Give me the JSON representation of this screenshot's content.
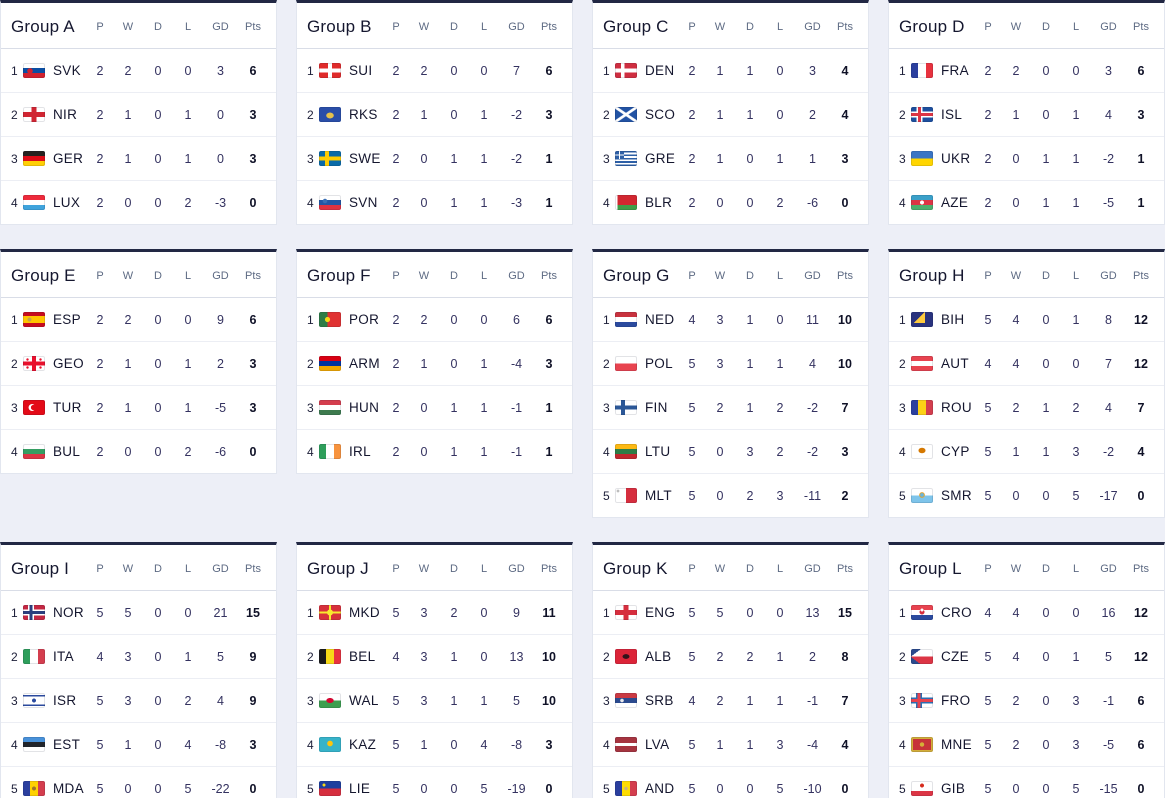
{
  "colors": {
    "page_background": "#edeff7",
    "card_background": "#ffffff",
    "card_accent_top_border": "#222844",
    "row_divider": "#eceef4",
    "column_header_text": "#5d6a83",
    "stat_text": "#343260",
    "points_text": "#0f1127"
  },
  "table_headers": {
    "p": "P",
    "w": "W",
    "d": "D",
    "l": "L",
    "gd": "GD",
    "pts": "Pts"
  },
  "groups": [
    {
      "name": "Group A",
      "rows": [
        {
          "pos": 1,
          "flag": "svk",
          "team": "SVK",
          "p": 2,
          "w": 2,
          "d": 0,
          "l": 0,
          "gd": 3,
          "pts": 6
        },
        {
          "pos": 2,
          "flag": "nir",
          "team": "NIR",
          "p": 2,
          "w": 1,
          "d": 0,
          "l": 1,
          "gd": 0,
          "pts": 3
        },
        {
          "pos": 3,
          "flag": "ger",
          "team": "GER",
          "p": 2,
          "w": 1,
          "d": 0,
          "l": 1,
          "gd": 0,
          "pts": 3
        },
        {
          "pos": 4,
          "flag": "lux",
          "team": "LUX",
          "p": 2,
          "w": 0,
          "d": 0,
          "l": 2,
          "gd": -3,
          "pts": 0
        }
      ]
    },
    {
      "name": "Group B",
      "rows": [
        {
          "pos": 1,
          "flag": "sui",
          "team": "SUI",
          "p": 2,
          "w": 2,
          "d": 0,
          "l": 0,
          "gd": 7,
          "pts": 6
        },
        {
          "pos": 2,
          "flag": "rks",
          "team": "RKS",
          "p": 2,
          "w": 1,
          "d": 0,
          "l": 1,
          "gd": -2,
          "pts": 3
        },
        {
          "pos": 3,
          "flag": "swe",
          "team": "SWE",
          "p": 2,
          "w": 0,
          "d": 1,
          "l": 1,
          "gd": -2,
          "pts": 1
        },
        {
          "pos": 4,
          "flag": "svn",
          "team": "SVN",
          "p": 2,
          "w": 0,
          "d": 1,
          "l": 1,
          "gd": -3,
          "pts": 1
        }
      ]
    },
    {
      "name": "Group C",
      "rows": [
        {
          "pos": 1,
          "flag": "den",
          "team": "DEN",
          "p": 2,
          "w": 1,
          "d": 1,
          "l": 0,
          "gd": 3,
          "pts": 4
        },
        {
          "pos": 2,
          "flag": "sco",
          "team": "SCO",
          "p": 2,
          "w": 1,
          "d": 1,
          "l": 0,
          "gd": 2,
          "pts": 4
        },
        {
          "pos": 3,
          "flag": "gre",
          "team": "GRE",
          "p": 2,
          "w": 1,
          "d": 0,
          "l": 1,
          "gd": 1,
          "pts": 3
        },
        {
          "pos": 4,
          "flag": "blr",
          "team": "BLR",
          "p": 2,
          "w": 0,
          "d": 0,
          "l": 2,
          "gd": -6,
          "pts": 0
        }
      ]
    },
    {
      "name": "Group D",
      "rows": [
        {
          "pos": 1,
          "flag": "fra",
          "team": "FRA",
          "p": 2,
          "w": 2,
          "d": 0,
          "l": 0,
          "gd": 3,
          "pts": 6
        },
        {
          "pos": 2,
          "flag": "isl",
          "team": "ISL",
          "p": 2,
          "w": 1,
          "d": 0,
          "l": 1,
          "gd": 4,
          "pts": 3
        },
        {
          "pos": 3,
          "flag": "ukr",
          "team": "UKR",
          "p": 2,
          "w": 0,
          "d": 1,
          "l": 1,
          "gd": -2,
          "pts": 1
        },
        {
          "pos": 4,
          "flag": "aze",
          "team": "AZE",
          "p": 2,
          "w": 0,
          "d": 1,
          "l": 1,
          "gd": -5,
          "pts": 1
        }
      ]
    },
    {
      "name": "Group E",
      "rows": [
        {
          "pos": 1,
          "flag": "esp",
          "team": "ESP",
          "p": 2,
          "w": 2,
          "d": 0,
          "l": 0,
          "gd": 9,
          "pts": 6
        },
        {
          "pos": 2,
          "flag": "geo",
          "team": "GEO",
          "p": 2,
          "w": 1,
          "d": 0,
          "l": 1,
          "gd": 2,
          "pts": 3
        },
        {
          "pos": 3,
          "flag": "tur",
          "team": "TUR",
          "p": 2,
          "w": 1,
          "d": 0,
          "l": 1,
          "gd": -5,
          "pts": 3
        },
        {
          "pos": 4,
          "flag": "bul",
          "team": "BUL",
          "p": 2,
          "w": 0,
          "d": 0,
          "l": 2,
          "gd": -6,
          "pts": 0
        }
      ]
    },
    {
      "name": "Group F",
      "rows": [
        {
          "pos": 1,
          "flag": "por",
          "team": "POR",
          "p": 2,
          "w": 2,
          "d": 0,
          "l": 0,
          "gd": 6,
          "pts": 6
        },
        {
          "pos": 2,
          "flag": "arm",
          "team": "ARM",
          "p": 2,
          "w": 1,
          "d": 0,
          "l": 1,
          "gd": -4,
          "pts": 3
        },
        {
          "pos": 3,
          "flag": "hun",
          "team": "HUN",
          "p": 2,
          "w": 0,
          "d": 1,
          "l": 1,
          "gd": -1,
          "pts": 1
        },
        {
          "pos": 4,
          "flag": "irl",
          "team": "IRL",
          "p": 2,
          "w": 0,
          "d": 1,
          "l": 1,
          "gd": -1,
          "pts": 1
        }
      ]
    },
    {
      "name": "Group G",
      "rows": [
        {
          "pos": 1,
          "flag": "ned",
          "team": "NED",
          "p": 4,
          "w": 3,
          "d": 1,
          "l": 0,
          "gd": 11,
          "pts": 10
        },
        {
          "pos": 2,
          "flag": "pol",
          "team": "POL",
          "p": 5,
          "w": 3,
          "d": 1,
          "l": 1,
          "gd": 4,
          "pts": 10
        },
        {
          "pos": 3,
          "flag": "fin",
          "team": "FIN",
          "p": 5,
          "w": 2,
          "d": 1,
          "l": 2,
          "gd": -2,
          "pts": 7
        },
        {
          "pos": 4,
          "flag": "ltu",
          "team": "LTU",
          "p": 5,
          "w": 0,
          "d": 3,
          "l": 2,
          "gd": -2,
          "pts": 3
        },
        {
          "pos": 5,
          "flag": "mlt",
          "team": "MLT",
          "p": 5,
          "w": 0,
          "d": 2,
          "l": 3,
          "gd": -11,
          "pts": 2
        }
      ]
    },
    {
      "name": "Group H",
      "rows": [
        {
          "pos": 1,
          "flag": "bih",
          "team": "BIH",
          "p": 5,
          "w": 4,
          "d": 0,
          "l": 1,
          "gd": 8,
          "pts": 12
        },
        {
          "pos": 2,
          "flag": "aut",
          "team": "AUT",
          "p": 4,
          "w": 4,
          "d": 0,
          "l": 0,
          "gd": 7,
          "pts": 12
        },
        {
          "pos": 3,
          "flag": "rou",
          "team": "ROU",
          "p": 5,
          "w": 2,
          "d": 1,
          "l": 2,
          "gd": 4,
          "pts": 7
        },
        {
          "pos": 4,
          "flag": "cyp",
          "team": "CYP",
          "p": 5,
          "w": 1,
          "d": 1,
          "l": 3,
          "gd": -2,
          "pts": 4
        },
        {
          "pos": 5,
          "flag": "smr",
          "team": "SMR",
          "p": 5,
          "w": 0,
          "d": 0,
          "l": 5,
          "gd": -17,
          "pts": 0
        }
      ]
    },
    {
      "name": "Group I",
      "rows": [
        {
          "pos": 1,
          "flag": "nor",
          "team": "NOR",
          "p": 5,
          "w": 5,
          "d": 0,
          "l": 0,
          "gd": 21,
          "pts": 15
        },
        {
          "pos": 2,
          "flag": "ita",
          "team": "ITA",
          "p": 4,
          "w": 3,
          "d": 0,
          "l": 1,
          "gd": 5,
          "pts": 9
        },
        {
          "pos": 3,
          "flag": "isr",
          "team": "ISR",
          "p": 5,
          "w": 3,
          "d": 0,
          "l": 2,
          "gd": 4,
          "pts": 9
        },
        {
          "pos": 4,
          "flag": "est",
          "team": "EST",
          "p": 5,
          "w": 1,
          "d": 0,
          "l": 4,
          "gd": -8,
          "pts": 3
        },
        {
          "pos": 5,
          "flag": "mda",
          "team": "MDA",
          "p": 5,
          "w": 0,
          "d": 0,
          "l": 5,
          "gd": -22,
          "pts": 0
        }
      ]
    },
    {
      "name": "Group J",
      "rows": [
        {
          "pos": 1,
          "flag": "mkd",
          "team": "MKD",
          "p": 5,
          "w": 3,
          "d": 2,
          "l": 0,
          "gd": 9,
          "pts": 11
        },
        {
          "pos": 2,
          "flag": "bel",
          "team": "BEL",
          "p": 4,
          "w": 3,
          "d": 1,
          "l": 0,
          "gd": 13,
          "pts": 10
        },
        {
          "pos": 3,
          "flag": "wal",
          "team": "WAL",
          "p": 5,
          "w": 3,
          "d": 1,
          "l": 1,
          "gd": 5,
          "pts": 10
        },
        {
          "pos": 4,
          "flag": "kaz",
          "team": "KAZ",
          "p": 5,
          "w": 1,
          "d": 0,
          "l": 4,
          "gd": -8,
          "pts": 3
        },
        {
          "pos": 5,
          "flag": "lie",
          "team": "LIE",
          "p": 5,
          "w": 0,
          "d": 0,
          "l": 5,
          "gd": -19,
          "pts": 0
        }
      ]
    },
    {
      "name": "Group K",
      "rows": [
        {
          "pos": 1,
          "flag": "eng",
          "team": "ENG",
          "p": 5,
          "w": 5,
          "d": 0,
          "l": 0,
          "gd": 13,
          "pts": 15
        },
        {
          "pos": 2,
          "flag": "alb",
          "team": "ALB",
          "p": 5,
          "w": 2,
          "d": 2,
          "l": 1,
          "gd": 2,
          "pts": 8
        },
        {
          "pos": 3,
          "flag": "srb",
          "team": "SRB",
          "p": 4,
          "w": 2,
          "d": 1,
          "l": 1,
          "gd": -1,
          "pts": 7
        },
        {
          "pos": 4,
          "flag": "lva",
          "team": "LVA",
          "p": 5,
          "w": 1,
          "d": 1,
          "l": 3,
          "gd": -4,
          "pts": 4
        },
        {
          "pos": 5,
          "flag": "and",
          "team": "AND",
          "p": 5,
          "w": 0,
          "d": 0,
          "l": 5,
          "gd": -10,
          "pts": 0
        }
      ]
    },
    {
      "name": "Group L",
      "rows": [
        {
          "pos": 1,
          "flag": "cro",
          "team": "CRO",
          "p": 4,
          "w": 4,
          "d": 0,
          "l": 0,
          "gd": 16,
          "pts": 12
        },
        {
          "pos": 2,
          "flag": "cze",
          "team": "CZE",
          "p": 5,
          "w": 4,
          "d": 0,
          "l": 1,
          "gd": 5,
          "pts": 12
        },
        {
          "pos": 3,
          "flag": "fro",
          "team": "FRO",
          "p": 5,
          "w": 2,
          "d": 0,
          "l": 3,
          "gd": -1,
          "pts": 6
        },
        {
          "pos": 4,
          "flag": "mne",
          "team": "MNE",
          "p": 5,
          "w": 2,
          "d": 0,
          "l": 3,
          "gd": -5,
          "pts": 6
        },
        {
          "pos": 5,
          "flag": "gib",
          "team": "GIB",
          "p": 5,
          "w": 0,
          "d": 0,
          "l": 5,
          "gd": -15,
          "pts": 0
        }
      ]
    }
  ]
}
